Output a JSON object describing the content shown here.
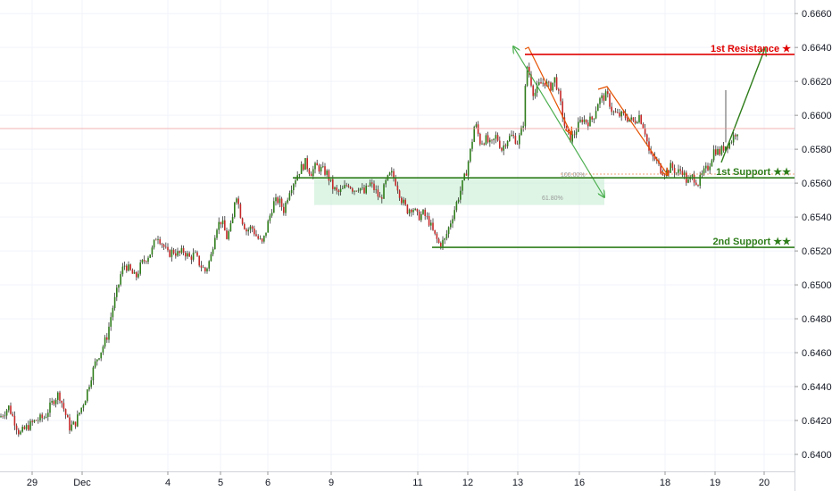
{
  "chart_data": {
    "type": "candlestick",
    "y_axis": {
      "ticks": [
        "0.66600",
        "0.66400",
        "0.66200",
        "0.66000",
        "0.65800",
        "0.65600",
        "0.65400",
        "0.65200",
        "0.65000",
        "0.64800",
        "0.64600",
        "0.64400",
        "0.64200",
        "0.64000"
      ],
      "range": [
        0.639,
        0.6668
      ]
    },
    "x_axis": {
      "ticks": [
        "29",
        "Dec",
        "4",
        "5",
        "6",
        "9",
        "11",
        "12",
        "13",
        "16",
        "18",
        "19",
        "20"
      ],
      "range": [
        0,
        890
      ]
    },
    "current_price": {
      "value": "0.65922",
      "color": "#ef9a9a"
    },
    "levels": [
      {
        "name": "1st Resistance ★",
        "value": 0.66359,
        "tag": "0.66359",
        "color": "#e00000"
      },
      {
        "name": "1st Support ★★",
        "value": 0.65631,
        "tag": "0.65631",
        "color": "#2e7d1a"
      },
      {
        "name": "2nd Support ★★",
        "value": 0.65221,
        "tag": "0.65221",
        "color": "#2e7d1a"
      }
    ],
    "fib_labels": [
      "100.00%",
      "61.80%"
    ],
    "zone": {
      "top": 0.65631,
      "bottom": 0.65471,
      "color": "#c8efd3"
    },
    "colors": {
      "up": "#2e7d1a",
      "down": "#c62828",
      "wick": "#333333"
    },
    "close_path": [
      [
        0,
        0.6422
      ],
      [
        10,
        0.6428
      ],
      [
        16,
        0.642
      ],
      [
        22,
        0.6412
      ],
      [
        30,
        0.6416
      ],
      [
        40,
        0.642
      ],
      [
        50,
        0.6422
      ],
      [
        60,
        0.6432
      ],
      [
        66,
        0.6436
      ],
      [
        72,
        0.6426
      ],
      [
        78,
        0.6416
      ],
      [
        84,
        0.6418
      ],
      [
        90,
        0.6426
      ],
      [
        96,
        0.6434
      ],
      [
        102,
        0.6446
      ],
      [
        108,
        0.6456
      ],
      [
        114,
        0.6462
      ],
      [
        120,
        0.647
      ],
      [
        126,
        0.6486
      ],
      [
        132,
        0.6498
      ],
      [
        136,
        0.6508
      ],
      [
        140,
        0.6512
      ],
      [
        146,
        0.6508
      ],
      [
        152,
        0.6504
      ],
      [
        158,
        0.6512
      ],
      [
        164,
        0.6516
      ],
      [
        170,
        0.652
      ],
      [
        176,
        0.653
      ],
      [
        182,
        0.6524
      ],
      [
        188,
        0.6518
      ],
      [
        194,
        0.652
      ],
      [
        200,
        0.6518
      ],
      [
        206,
        0.652
      ],
      [
        212,
        0.6516
      ],
      [
        218,
        0.6518
      ],
      [
        224,
        0.6512
      ],
      [
        230,
        0.6508
      ],
      [
        236,
        0.6516
      ],
      [
        242,
        0.6534
      ],
      [
        248,
        0.6538
      ],
      [
        254,
        0.6528
      ],
      [
        260,
        0.6536
      ],
      [
        264,
        0.6556
      ],
      [
        270,
        0.654
      ],
      [
        276,
        0.6532
      ],
      [
        282,
        0.6534
      ],
      [
        288,
        0.6528
      ],
      [
        294,
        0.6524
      ],
      [
        300,
        0.6536
      ],
      [
        306,
        0.6548
      ],
      [
        312,
        0.655
      ],
      [
        318,
        0.6544
      ],
      [
        324,
        0.6556
      ],
      [
        330,
        0.6562
      ],
      [
        336,
        0.6568
      ],
      [
        342,
        0.6572
      ],
      [
        348,
        0.6566
      ],
      [
        354,
        0.657
      ],
      [
        360,
        0.6568
      ],
      [
        366,
        0.6566
      ],
      [
        372,
        0.6558
      ],
      [
        378,
        0.6554
      ],
      [
        384,
        0.6556
      ],
      [
        390,
        0.656
      ],
      [
        396,
        0.6556
      ],
      [
        402,
        0.6558
      ],
      [
        408,
        0.6554
      ],
      [
        414,
        0.656
      ],
      [
        420,
        0.6556
      ],
      [
        426,
        0.655
      ],
      [
        432,
        0.656
      ],
      [
        438,
        0.6566
      ],
      [
        444,
        0.656
      ],
      [
        450,
        0.655
      ],
      [
        456,
        0.6544
      ],
      [
        462,
        0.6546
      ],
      [
        468,
        0.654
      ],
      [
        474,
        0.6542
      ],
      [
        480,
        0.6538
      ],
      [
        486,
        0.653
      ],
      [
        492,
        0.6524
      ],
      [
        498,
        0.6526
      ],
      [
        504,
        0.6536
      ],
      [
        510,
        0.6546
      ],
      [
        516,
        0.6556
      ],
      [
        522,
        0.6566
      ],
      [
        528,
        0.6582
      ],
      [
        532,
        0.6596
      ],
      [
        538,
        0.6584
      ],
      [
        544,
        0.6586
      ],
      [
        550,
        0.6582
      ],
      [
        556,
        0.6588
      ],
      [
        562,
        0.658
      ],
      [
        568,
        0.6586
      ],
      [
        574,
        0.6588
      ],
      [
        580,
        0.6584
      ],
      [
        586,
        0.6594
      ],
      [
        590,
        0.663
      ],
      [
        594,
        0.6622
      ],
      [
        598,
        0.6612
      ],
      [
        604,
        0.6618
      ],
      [
        610,
        0.662
      ],
      [
        616,
        0.6616
      ],
      [
        622,
        0.6622
      ],
      [
        628,
        0.6606
      ],
      [
        634,
        0.659
      ],
      [
        640,
        0.6586
      ],
      [
        646,
        0.6592
      ],
      [
        652,
        0.6598
      ],
      [
        658,
        0.6596
      ],
      [
        664,
        0.6598
      ],
      [
        670,
        0.6608
      ],
      [
        674,
        0.661
      ],
      [
        680,
        0.6612
      ],
      [
        686,
        0.6602
      ],
      [
        692,
        0.66
      ],
      [
        698,
        0.66
      ],
      [
        704,
        0.6598
      ],
      [
        710,
        0.6596
      ],
      [
        716,
        0.66
      ],
      [
        722,
        0.6592
      ],
      [
        728,
        0.6576
      ],
      [
        734,
        0.6574
      ],
      [
        740,
        0.6568
      ],
      [
        746,
        0.6566
      ],
      [
        752,
        0.657
      ],
      [
        758,
        0.6566
      ],
      [
        764,
        0.6568
      ],
      [
        770,
        0.656
      ],
      [
        776,
        0.6564
      ],
      [
        782,
        0.656
      ],
      [
        788,
        0.6566
      ],
      [
        794,
        0.657
      ],
      [
        800,
        0.658
      ],
      [
        806,
        0.6578
      ],
      [
        812,
        0.6582
      ],
      [
        818,
        0.6584
      ],
      [
        824,
        0.659
      ],
      [
        828,
        0.6592
      ]
    ]
  }
}
